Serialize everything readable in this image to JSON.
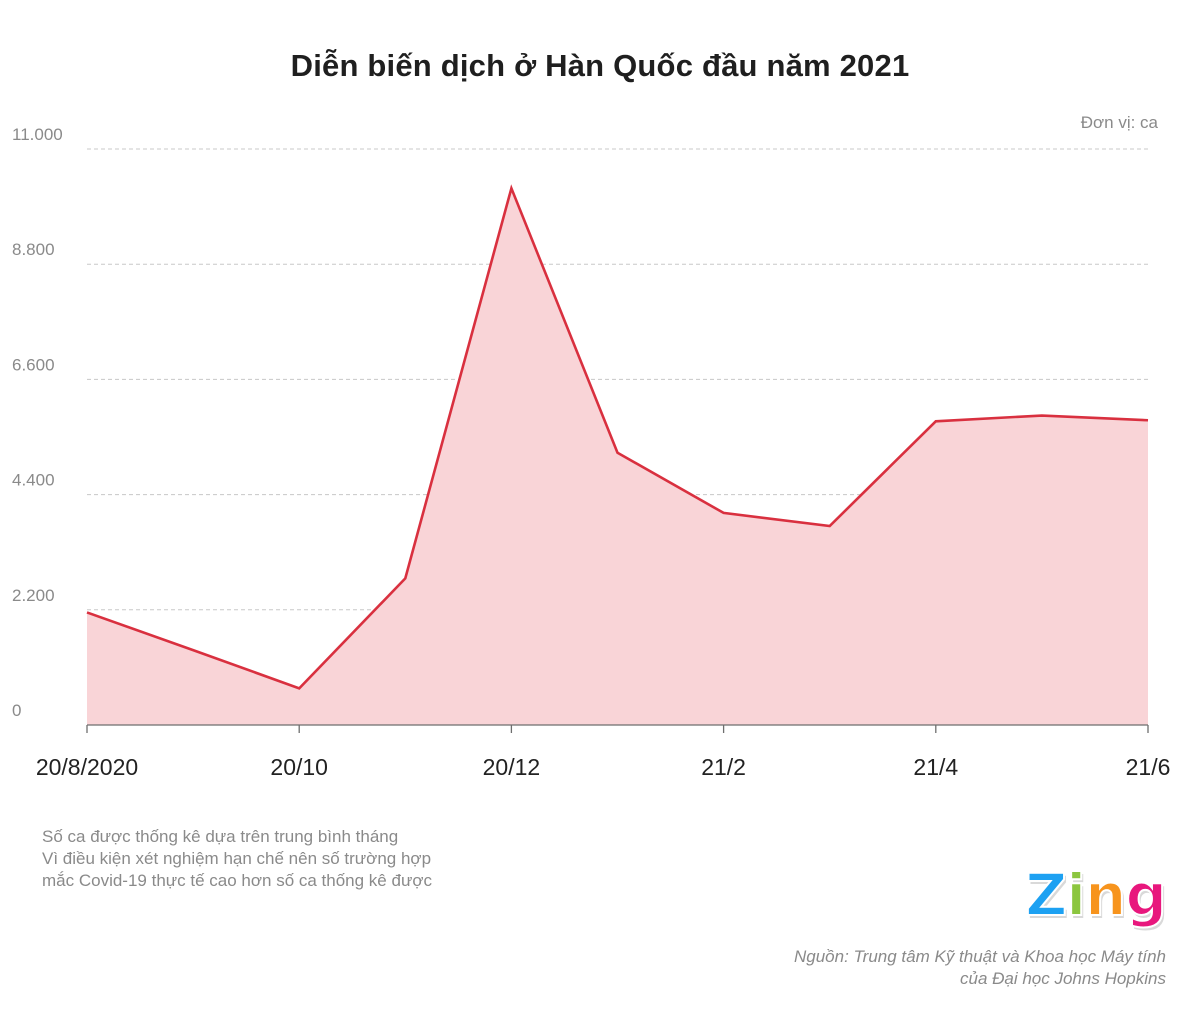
{
  "unit_label": "Đơn vị: ca",
  "notes": [
    "Số ca được thống kê dựa trên trung bình tháng",
    "Vì điều kiện xét nghiệm hạn chế nên số trường hợp",
    "mắc Covid-19 thực tế cao hơn số ca thống kê được"
  ],
  "logo": {
    "text": "Zing",
    "letters": [
      "Z",
      "i",
      "n",
      "g"
    ],
    "colors": [
      "#1da1f2",
      "#8cc63f",
      "#f7941d",
      "#e8177d"
    ]
  },
  "source_lines": [
    "Nguồn: Trung tâm Kỹ thuật và Khoa học Máy tính",
    "của Đại học Johns Hopkins"
  ],
  "colors": {
    "line": "#d9303f",
    "fill": "#f9d4d7",
    "grid": "#c8c8c8",
    "tick": "#8a8a8a"
  },
  "chart_data": {
    "type": "area",
    "title": "Diễn biến dịch ở Hàn Quốc đầu năm 2021",
    "xlabel": "",
    "ylabel": "",
    "x": [
      "2020-08",
      "2020-09",
      "2020-10",
      "2020-11",
      "2020-12",
      "2021-01",
      "2021-02",
      "2021-03",
      "2021-04",
      "2021-05",
      "2021-06"
    ],
    "x_tick_labels": [
      {
        "x": "2020-08",
        "label": "20/8/2020"
      },
      {
        "x": "2020-10",
        "label": "20/10"
      },
      {
        "x": "2020-12",
        "label": "20/12"
      },
      {
        "x": "2021-02",
        "label": "21/2"
      },
      {
        "x": "2021-04",
        "label": "21/4"
      },
      {
        "x": "2021-06",
        "label": "21/6"
      }
    ],
    "series": [
      {
        "values": [
          2150,
          1430,
          700,
          2800,
          10250,
          5200,
          4050,
          3800,
          5800,
          5910,
          5820
        ]
      }
    ],
    "ylim": [
      0,
      11000
    ],
    "y_ticks": [
      0,
      2200,
      4400,
      6600,
      8800,
      11000
    ],
    "y_tick_labels": [
      "0",
      "2.200",
      "4.400",
      "6.600",
      "8.800",
      "11.000"
    ],
    "grid": true
  }
}
